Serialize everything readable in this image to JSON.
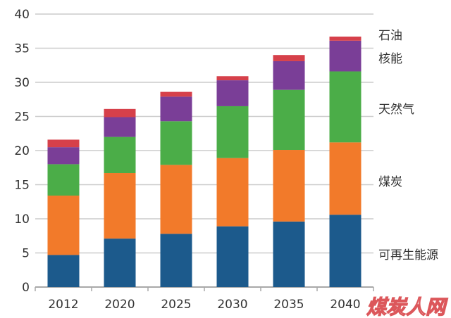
{
  "chart_data": {
    "type": "bar",
    "stacked": true,
    "categories": [
      "2012",
      "2020",
      "2025",
      "2030",
      "2035",
      "2040"
    ],
    "series": [
      {
        "name": "可再生能源",
        "color": "#1c5a8c",
        "values": [
          4.7,
          7.1,
          7.8,
          8.9,
          9.6,
          10.6
        ]
      },
      {
        "name": "煤炭",
        "color": "#f27a2a",
        "values": [
          8.7,
          9.6,
          10.1,
          10.0,
          10.5,
          10.6
        ]
      },
      {
        "name": "天然气",
        "color": "#4bad48",
        "values": [
          4.6,
          5.3,
          6.4,
          7.6,
          8.8,
          10.4
        ]
      },
      {
        "name": "核能",
        "color": "#7a3e97",
        "values": [
          2.5,
          2.9,
          3.6,
          3.8,
          4.2,
          4.5
        ]
      },
      {
        "name": "石油",
        "color": "#d6404a",
        "values": [
          1.1,
          1.2,
          0.7,
          0.6,
          0.9,
          0.6
        ]
      }
    ],
    "ylim": [
      0,
      40
    ],
    "yticks": [
      0,
      5,
      10,
      15,
      20,
      25,
      30,
      35,
      40
    ],
    "grid": true,
    "legend": "right"
  },
  "watermark": {
    "text": "煤炭人网"
  }
}
